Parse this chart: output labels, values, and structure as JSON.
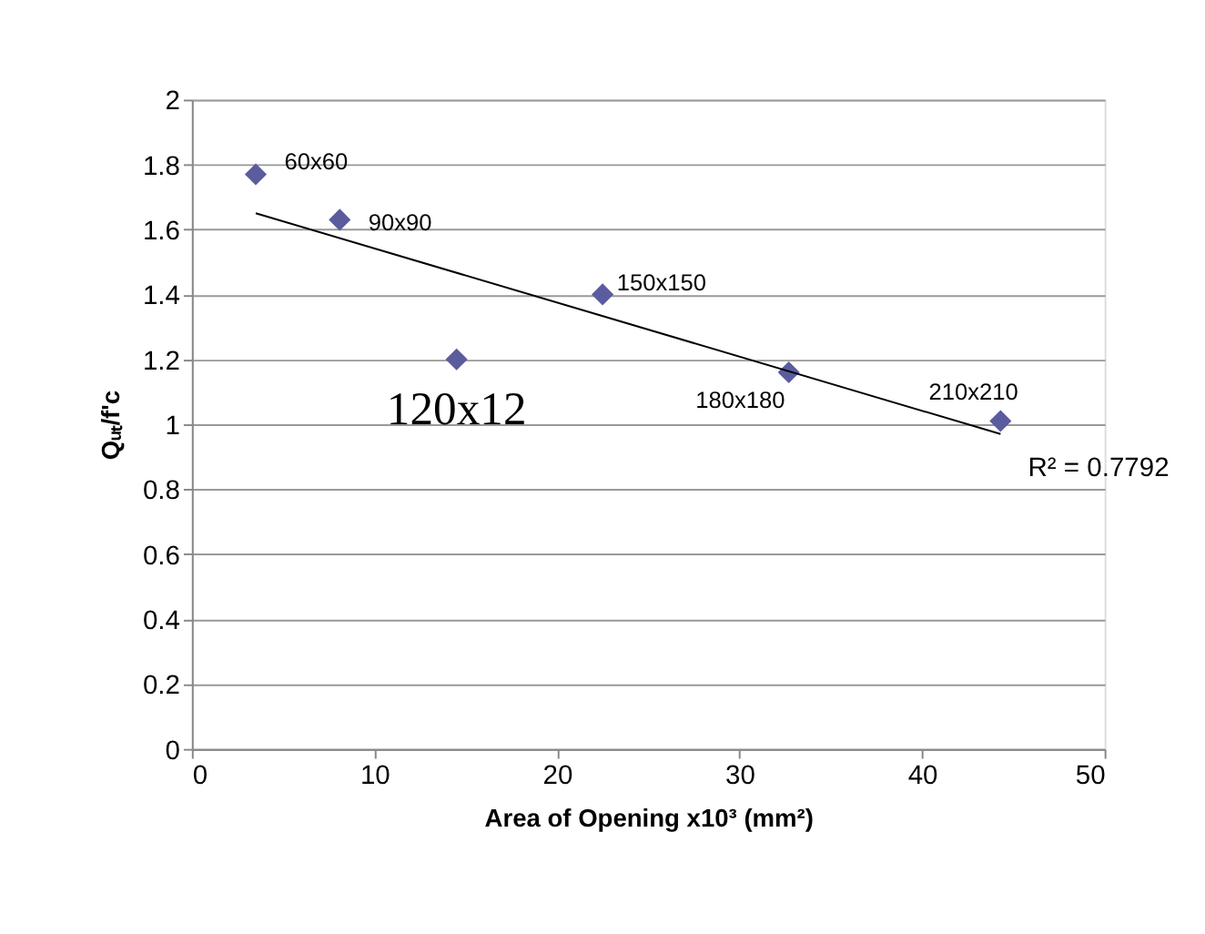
{
  "chart_data": {
    "type": "scatter",
    "xlabel": "Area of Opening x10³ (mm²)",
    "ylabel": "Qᵤₜ/f'c",
    "xlim": [
      0,
      50
    ],
    "xticks": [
      0,
      10,
      20,
      30,
      40,
      50
    ],
    "ylim": [
      0,
      2
    ],
    "yticks": [
      0,
      0.2,
      0.4,
      0.6,
      0.8,
      1,
      1.2,
      1.4,
      1.6,
      1.8,
      2
    ],
    "grid": "y",
    "marker": "diamond",
    "series": [
      {
        "color": "#5a5c9e",
        "x": [
          3.5,
          8.1,
          14.5,
          22.5,
          32.7,
          44.3
        ],
        "values": [
          1.77,
          1.63,
          1.2,
          1.4,
          1.16,
          1.01
        ],
        "value_labels": [
          "60x60",
          "90x90",
          "120x12",
          "150x150",
          "180x180",
          "210x210"
        ]
      },
      {
        "type": "line",
        "marker": "none",
        "color": "#000000",
        "x": [
          3.5,
          44.3
        ],
        "values": [
          1.65,
          0.97
        ]
      }
    ],
    "annotations": [
      "R² = 0.7792"
    ]
  }
}
